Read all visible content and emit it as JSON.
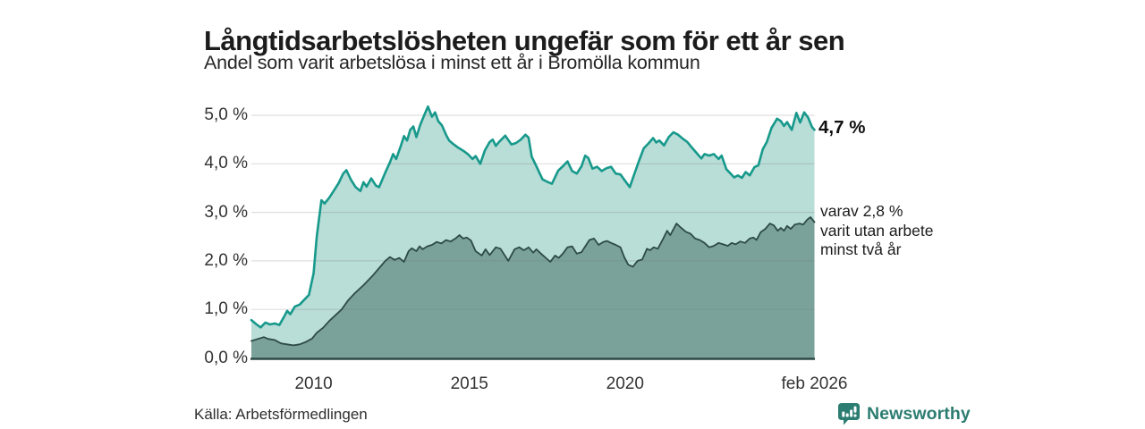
{
  "header": {
    "title": "Långtidsarbetslösheten ungefär som för ett år sen",
    "subtitle": "Andel som varit arbetslösa i minst ett år i Bromölla kommun"
  },
  "chart_data": {
    "type": "area",
    "title": "Långtidsarbetslösheten ungefär som för ett år sen",
    "subtitle": "Andel som varit arbetslösa i minst ett år i Bromölla kommun",
    "x_domain": [
      2008,
      2026.08
    ],
    "y_domain": [
      0,
      5.5
    ],
    "grid": true,
    "legend_position": "end-of-line-annotations",
    "y_axis": {
      "tick_labels": [
        "0,0 %",
        "1,0 %",
        "2,0 %",
        "3,0 %",
        "4,0 %",
        "5,0 %"
      ],
      "tick_values": [
        0,
        1,
        2,
        3,
        4,
        5
      ]
    },
    "x_axis": {
      "ticks": [
        {
          "label": "2010",
          "year": 2010
        },
        {
          "label": "2015",
          "year": 2015
        },
        {
          "label": "2020",
          "year": 2020
        },
        {
          "label": "feb 2026",
          "year": 2026.08
        }
      ]
    },
    "series": [
      {
        "name": "Andel arbetslösa minst ett år",
        "end_value": "4,7 %",
        "line_color": "#17998b",
        "fill_color": "#b9ddd7",
        "line_width": 2.6,
        "points": [
          [
            2008.0,
            0.78
          ],
          [
            2008.15,
            0.7
          ],
          [
            2008.3,
            0.63
          ],
          [
            2008.45,
            0.73
          ],
          [
            2008.6,
            0.69
          ],
          [
            2008.75,
            0.71
          ],
          [
            2008.9,
            0.68
          ],
          [
            2009.05,
            0.85
          ],
          [
            2009.15,
            0.97
          ],
          [
            2009.25,
            0.9
          ],
          [
            2009.4,
            1.06
          ],
          [
            2009.55,
            1.1
          ],
          [
            2009.7,
            1.2
          ],
          [
            2009.85,
            1.3
          ],
          [
            2010.0,
            1.75
          ],
          [
            2010.1,
            2.5
          ],
          [
            2010.25,
            3.25
          ],
          [
            2010.35,
            3.18
          ],
          [
            2010.5,
            3.3
          ],
          [
            2010.65,
            3.45
          ],
          [
            2010.8,
            3.6
          ],
          [
            2010.95,
            3.8
          ],
          [
            2011.05,
            3.87
          ],
          [
            2011.2,
            3.67
          ],
          [
            2011.35,
            3.52
          ],
          [
            2011.5,
            3.44
          ],
          [
            2011.6,
            3.62
          ],
          [
            2011.7,
            3.53
          ],
          [
            2011.85,
            3.7
          ],
          [
            2012.0,
            3.55
          ],
          [
            2012.1,
            3.52
          ],
          [
            2012.3,
            3.82
          ],
          [
            2012.45,
            4.03
          ],
          [
            2012.55,
            4.2
          ],
          [
            2012.65,
            4.1
          ],
          [
            2012.8,
            4.37
          ],
          [
            2012.9,
            4.57
          ],
          [
            2013.0,
            4.48
          ],
          [
            2013.1,
            4.7
          ],
          [
            2013.2,
            4.77
          ],
          [
            2013.3,
            4.55
          ],
          [
            2013.42,
            4.8
          ],
          [
            2013.55,
            5.0
          ],
          [
            2013.67,
            5.18
          ],
          [
            2013.8,
            4.97
          ],
          [
            2013.9,
            5.06
          ],
          [
            2014.0,
            4.88
          ],
          [
            2014.12,
            4.79
          ],
          [
            2014.25,
            4.6
          ],
          [
            2014.35,
            4.48
          ],
          [
            2014.5,
            4.4
          ],
          [
            2014.65,
            4.33
          ],
          [
            2014.8,
            4.27
          ],
          [
            2014.95,
            4.2
          ],
          [
            2015.1,
            4.1
          ],
          [
            2015.2,
            4.16
          ],
          [
            2015.35,
            4.0
          ],
          [
            2015.5,
            4.28
          ],
          [
            2015.65,
            4.45
          ],
          [
            2015.75,
            4.5
          ],
          [
            2015.85,
            4.37
          ],
          [
            2015.95,
            4.45
          ],
          [
            2016.15,
            4.58
          ],
          [
            2016.35,
            4.4
          ],
          [
            2016.5,
            4.43
          ],
          [
            2016.65,
            4.5
          ],
          [
            2016.8,
            4.6
          ],
          [
            2016.9,
            4.54
          ],
          [
            2017.0,
            4.15
          ],
          [
            2017.15,
            3.95
          ],
          [
            2017.35,
            3.68
          ],
          [
            2017.5,
            3.63
          ],
          [
            2017.65,
            3.59
          ],
          [
            2017.85,
            3.86
          ],
          [
            2018.0,
            3.95
          ],
          [
            2018.15,
            4.05
          ],
          [
            2018.3,
            3.85
          ],
          [
            2018.45,
            3.8
          ],
          [
            2018.6,
            3.95
          ],
          [
            2018.72,
            4.17
          ],
          [
            2018.82,
            4.12
          ],
          [
            2018.95,
            3.9
          ],
          [
            2019.1,
            3.94
          ],
          [
            2019.25,
            3.85
          ],
          [
            2019.4,
            3.91
          ],
          [
            2019.55,
            3.94
          ],
          [
            2019.7,
            3.8
          ],
          [
            2019.85,
            3.78
          ],
          [
            2020.0,
            3.65
          ],
          [
            2020.15,
            3.52
          ],
          [
            2020.3,
            3.8
          ],
          [
            2020.45,
            4.07
          ],
          [
            2020.6,
            4.32
          ],
          [
            2020.75,
            4.42
          ],
          [
            2020.9,
            4.53
          ],
          [
            2021.0,
            4.44
          ],
          [
            2021.1,
            4.48
          ],
          [
            2021.25,
            4.38
          ],
          [
            2021.4,
            4.55
          ],
          [
            2021.55,
            4.65
          ],
          [
            2021.7,
            4.6
          ],
          [
            2021.85,
            4.52
          ],
          [
            2022.0,
            4.45
          ],
          [
            2022.15,
            4.33
          ],
          [
            2022.3,
            4.22
          ],
          [
            2022.45,
            4.11
          ],
          [
            2022.55,
            4.2
          ],
          [
            2022.7,
            4.17
          ],
          [
            2022.85,
            4.2
          ],
          [
            2023.0,
            4.1
          ],
          [
            2023.1,
            4.17
          ],
          [
            2023.25,
            3.89
          ],
          [
            2023.4,
            3.79
          ],
          [
            2023.5,
            3.72
          ],
          [
            2023.62,
            3.76
          ],
          [
            2023.75,
            3.71
          ],
          [
            2023.87,
            3.83
          ],
          [
            2024.0,
            3.76
          ],
          [
            2024.15,
            3.93
          ],
          [
            2024.28,
            3.97
          ],
          [
            2024.42,
            4.3
          ],
          [
            2024.55,
            4.45
          ],
          [
            2024.7,
            4.74
          ],
          [
            2024.88,
            4.93
          ],
          [
            2025.0,
            4.88
          ],
          [
            2025.1,
            4.78
          ],
          [
            2025.2,
            4.86
          ],
          [
            2025.35,
            4.7
          ],
          [
            2025.5,
            5.05
          ],
          [
            2025.62,
            4.85
          ],
          [
            2025.75,
            5.06
          ],
          [
            2025.88,
            4.95
          ],
          [
            2026.0,
            4.76
          ],
          [
            2026.08,
            4.7
          ]
        ]
      },
      {
        "name": "Varav utan arbete minst två år",
        "end_value": "2,8 %",
        "line_color": "#2d4b45",
        "fill_color": "#7aa29b",
        "line_width": 1.8,
        "points": [
          [
            2008.0,
            0.35
          ],
          [
            2008.2,
            0.39
          ],
          [
            2008.4,
            0.43
          ],
          [
            2008.55,
            0.39
          ],
          [
            2008.75,
            0.37
          ],
          [
            2008.95,
            0.3
          ],
          [
            2009.15,
            0.28
          ],
          [
            2009.35,
            0.26
          ],
          [
            2009.55,
            0.28
          ],
          [
            2009.75,
            0.33
          ],
          [
            2009.95,
            0.4
          ],
          [
            2010.1,
            0.52
          ],
          [
            2010.3,
            0.62
          ],
          [
            2010.5,
            0.76
          ],
          [
            2010.7,
            0.88
          ],
          [
            2010.9,
            1.0
          ],
          [
            2011.1,
            1.18
          ],
          [
            2011.3,
            1.32
          ],
          [
            2011.6,
            1.5
          ],
          [
            2011.9,
            1.7
          ],
          [
            2012.1,
            1.85
          ],
          [
            2012.3,
            2.0
          ],
          [
            2012.45,
            2.08
          ],
          [
            2012.6,
            2.02
          ],
          [
            2012.75,
            2.06
          ],
          [
            2012.9,
            1.98
          ],
          [
            2013.05,
            2.2
          ],
          [
            2013.15,
            2.26
          ],
          [
            2013.3,
            2.2
          ],
          [
            2013.4,
            2.3
          ],
          [
            2013.5,
            2.24
          ],
          [
            2013.65,
            2.3
          ],
          [
            2013.8,
            2.33
          ],
          [
            2013.95,
            2.39
          ],
          [
            2014.1,
            2.36
          ],
          [
            2014.25,
            2.43
          ],
          [
            2014.4,
            2.4
          ],
          [
            2014.55,
            2.46
          ],
          [
            2014.68,
            2.53
          ],
          [
            2014.8,
            2.46
          ],
          [
            2014.92,
            2.48
          ],
          [
            2015.05,
            2.42
          ],
          [
            2015.2,
            2.2
          ],
          [
            2015.4,
            2.11
          ],
          [
            2015.52,
            2.24
          ],
          [
            2015.65,
            2.12
          ],
          [
            2015.85,
            2.28
          ],
          [
            2016.0,
            2.25
          ],
          [
            2016.25,
            2.0
          ],
          [
            2016.45,
            2.24
          ],
          [
            2016.6,
            2.28
          ],
          [
            2016.75,
            2.22
          ],
          [
            2016.9,
            2.28
          ],
          [
            2017.05,
            2.17
          ],
          [
            2017.15,
            2.24
          ],
          [
            2017.3,
            2.15
          ],
          [
            2017.6,
            1.98
          ],
          [
            2017.75,
            2.11
          ],
          [
            2017.87,
            2.06
          ],
          [
            2018.0,
            2.15
          ],
          [
            2018.15,
            2.28
          ],
          [
            2018.3,
            2.3
          ],
          [
            2018.45,
            2.15
          ],
          [
            2018.6,
            2.18
          ],
          [
            2018.85,
            2.43
          ],
          [
            2019.0,
            2.46
          ],
          [
            2019.15,
            2.33
          ],
          [
            2019.3,
            2.39
          ],
          [
            2019.42,
            2.41
          ],
          [
            2019.55,
            2.37
          ],
          [
            2019.7,
            2.33
          ],
          [
            2019.85,
            2.28
          ],
          [
            2019.97,
            2.08
          ],
          [
            2020.1,
            1.92
          ],
          [
            2020.25,
            1.88
          ],
          [
            2020.4,
            2.0
          ],
          [
            2020.55,
            2.03
          ],
          [
            2020.7,
            2.25
          ],
          [
            2020.8,
            2.22
          ],
          [
            2020.92,
            2.28
          ],
          [
            2021.05,
            2.25
          ],
          [
            2021.2,
            2.43
          ],
          [
            2021.35,
            2.62
          ],
          [
            2021.45,
            2.53
          ],
          [
            2021.65,
            2.77
          ],
          [
            2021.8,
            2.68
          ],
          [
            2021.95,
            2.6
          ],
          [
            2022.1,
            2.56
          ],
          [
            2022.25,
            2.46
          ],
          [
            2022.4,
            2.43
          ],
          [
            2022.55,
            2.37
          ],
          [
            2022.7,
            2.28
          ],
          [
            2022.85,
            2.31
          ],
          [
            2023.0,
            2.37
          ],
          [
            2023.15,
            2.34
          ],
          [
            2023.3,
            2.31
          ],
          [
            2023.42,
            2.37
          ],
          [
            2023.55,
            2.34
          ],
          [
            2023.7,
            2.4
          ],
          [
            2023.85,
            2.37
          ],
          [
            2024.0,
            2.46
          ],
          [
            2024.12,
            2.48
          ],
          [
            2024.22,
            2.43
          ],
          [
            2024.35,
            2.59
          ],
          [
            2024.5,
            2.66
          ],
          [
            2024.65,
            2.77
          ],
          [
            2024.78,
            2.73
          ],
          [
            2024.9,
            2.62
          ],
          [
            2025.0,
            2.68
          ],
          [
            2025.1,
            2.62
          ],
          [
            2025.2,
            2.72
          ],
          [
            2025.32,
            2.66
          ],
          [
            2025.45,
            2.75
          ],
          [
            2025.6,
            2.77
          ],
          [
            2025.72,
            2.75
          ],
          [
            2025.85,
            2.85
          ],
          [
            2025.95,
            2.9
          ],
          [
            2026.08,
            2.8
          ]
        ]
      }
    ],
    "annotations": {
      "end_top": "4,7 %",
      "end_bottom_line1": "varav 2,8 %",
      "end_bottom_line2": "varit utan arbete",
      "end_bottom_line3": "minst två år"
    },
    "colors": {
      "accent_teal": "#17998b",
      "light_fill": "#b9ddd7",
      "dark_fill": "#7aa29b",
      "dark_line": "#2d4b45",
      "gridline": "#d9d9d9",
      "brand_teal": "#2c7d71"
    }
  },
  "footer": {
    "source": "Källa: Arbetsförmedlingen",
    "brand": "Newsworthy"
  }
}
